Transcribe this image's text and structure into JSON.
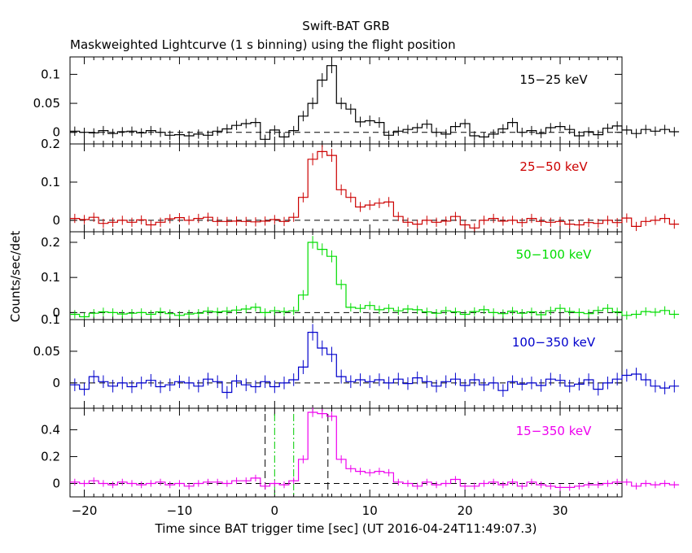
{
  "header": {
    "title": "Swift-BAT GRB",
    "subtitle": "Maskweighted Lightcurve (1 s binning) using the flight position"
  },
  "chart_data": {
    "type": "line",
    "xlabel": "Time since BAT trigger time [sec] (UT 2016-04-24T11:49:07.3)",
    "ylabel": "Counts/sec/det",
    "xlim": [
      -21.5,
      36.5
    ],
    "x_ticks": [
      -20,
      -10,
      0,
      10,
      20,
      30
    ],
    "x_tick_labels": [
      "−20",
      "−10",
      "0",
      "10",
      "20",
      "30"
    ],
    "bin_start": -21.5,
    "bin_width": 1,
    "panels": [
      {
        "band": "15−25 keV",
        "color": "#000000",
        "ylim": [
          -0.02,
          0.13
        ],
        "y_ticks": [
          0,
          0.05,
          0.1
        ],
        "y_tick_labels": [
          "0",
          "0.05",
          "0.1"
        ],
        "values": [
          0.002,
          0.0,
          -0.001,
          0.003,
          -0.002,
          0.001,
          0.002,
          -0.001,
          0.003,
          0.0,
          -0.005,
          -0.004,
          -0.006,
          -0.003,
          -0.005,
          0.002,
          0.006,
          0.012,
          0.015,
          0.017,
          -0.012,
          0.004,
          -0.008,
          0.003,
          0.028,
          0.05,
          0.09,
          0.115,
          0.05,
          0.04,
          0.018,
          0.02,
          0.017,
          -0.005,
          0.002,
          0.005,
          0.008,
          0.014,
          0.0,
          -0.003,
          0.01,
          0.015,
          -0.006,
          -0.008,
          -0.003,
          0.006,
          0.017,
          0.0,
          0.003,
          -0.002,
          0.008,
          0.01,
          0.005,
          -0.006,
          0.001,
          -0.004,
          0.007,
          0.011,
          0.004,
          -0.002,
          0.005,
          0.002,
          0.005,
          0.001
        ],
        "errors": [
          0.008,
          0.008,
          0.008,
          0.008,
          0.008,
          0.008,
          0.008,
          0.008,
          0.008,
          0.008,
          0.008,
          0.008,
          0.008,
          0.008,
          0.008,
          0.008,
          0.008,
          0.008,
          0.008,
          0.008,
          0.008,
          0.008,
          0.008,
          0.008,
          0.009,
          0.01,
          0.012,
          0.013,
          0.01,
          0.009,
          0.009,
          0.009,
          0.009,
          0.008,
          0.008,
          0.008,
          0.008,
          0.008,
          0.008,
          0.008,
          0.008,
          0.008,
          0.008,
          0.008,
          0.008,
          0.008,
          0.008,
          0.008,
          0.008,
          0.008,
          0.008,
          0.008,
          0.008,
          0.008,
          0.008,
          0.008,
          0.008,
          0.008,
          0.008,
          0.008,
          0.008,
          0.008,
          0.008,
          0.008
        ]
      },
      {
        "band": "25−50 keV",
        "color": "#cc0000",
        "ylim": [
          -0.03,
          0.2
        ],
        "y_ticks": [
          0,
          0.1,
          0.2
        ],
        "y_tick_labels": [
          "0",
          "0.1",
          "0.2"
        ],
        "values": [
          0.005,
          0.002,
          0.008,
          -0.008,
          -0.005,
          0.0,
          -0.005,
          0.001,
          -0.012,
          -0.005,
          0.004,
          0.007,
          0.0,
          0.005,
          0.008,
          -0.003,
          -0.003,
          -0.002,
          -0.003,
          -0.004,
          -0.002,
          0.002,
          -0.003,
          0.008,
          0.06,
          0.16,
          0.18,
          0.17,
          0.08,
          0.06,
          0.035,
          0.04,
          0.045,
          0.048,
          0.01,
          -0.005,
          -0.01,
          0.0,
          -0.005,
          -0.002,
          0.01,
          -0.012,
          -0.02,
          0.0,
          0.005,
          -0.002,
          0.0,
          -0.006,
          0.005,
          -0.003,
          -0.005,
          -0.003,
          -0.01,
          -0.012,
          -0.006,
          -0.008,
          0.0,
          -0.006,
          0.006,
          -0.016,
          -0.003,
          0.0,
          0.005,
          -0.01
        ],
        "errors": [
          0.012,
          0.012,
          0.012,
          0.012,
          0.012,
          0.012,
          0.012,
          0.012,
          0.012,
          0.012,
          0.012,
          0.012,
          0.012,
          0.012,
          0.012,
          0.012,
          0.012,
          0.012,
          0.012,
          0.012,
          0.012,
          0.012,
          0.012,
          0.012,
          0.013,
          0.016,
          0.017,
          0.017,
          0.014,
          0.013,
          0.013,
          0.013,
          0.013,
          0.013,
          0.012,
          0.012,
          0.012,
          0.012,
          0.012,
          0.012,
          0.012,
          0.012,
          0.012,
          0.012,
          0.012,
          0.012,
          0.012,
          0.012,
          0.012,
          0.012,
          0.012,
          0.012,
          0.012,
          0.012,
          0.012,
          0.012,
          0.012,
          0.012,
          0.012,
          0.012,
          0.012,
          0.012,
          0.012,
          0.012
        ]
      },
      {
        "band": "50−100 keV",
        "color": "#00dd00",
        "ylim": [
          -0.02,
          0.23
        ],
        "y_ticks": [
          0,
          0.1,
          0.2
        ],
        "y_tick_labels": [
          "0",
          "0.1",
          "0.2"
        ],
        "values": [
          -0.005,
          -0.012,
          -0.002,
          0.002,
          0.0,
          -0.004,
          -0.002,
          0.0,
          -0.005,
          0.002,
          -0.003,
          -0.008,
          -0.004,
          -0.002,
          0.004,
          0.002,
          0.004,
          0.007,
          0.01,
          0.015,
          0.0,
          0.005,
          0.003,
          0.005,
          0.05,
          0.2,
          0.18,
          0.16,
          0.08,
          0.015,
          0.012,
          0.02,
          0.008,
          0.012,
          0.005,
          0.01,
          0.008,
          0.002,
          -0.002,
          0.005,
          0.002,
          -0.005,
          0.003,
          0.008,
          0.0,
          -0.003,
          0.004,
          -0.002,
          0.002,
          -0.006,
          0.005,
          0.012,
          0.003,
          0.0,
          -0.003,
          0.006,
          0.012,
          0.002,
          -0.008,
          -0.005,
          0.003,
          0.001,
          0.006,
          -0.005
        ],
        "errors": [
          0.012,
          0.012,
          0.012,
          0.012,
          0.012,
          0.012,
          0.012,
          0.012,
          0.012,
          0.012,
          0.012,
          0.012,
          0.012,
          0.012,
          0.012,
          0.012,
          0.012,
          0.012,
          0.012,
          0.012,
          0.012,
          0.012,
          0.012,
          0.012,
          0.014,
          0.018,
          0.017,
          0.017,
          0.014,
          0.012,
          0.012,
          0.012,
          0.012,
          0.012,
          0.012,
          0.012,
          0.012,
          0.012,
          0.012,
          0.012,
          0.012,
          0.012,
          0.012,
          0.012,
          0.012,
          0.012,
          0.012,
          0.012,
          0.012,
          0.012,
          0.012,
          0.012,
          0.012,
          0.012,
          0.012,
          0.012,
          0.012,
          0.012,
          0.012,
          0.012,
          0.012,
          0.012,
          0.012,
          0.012
        ]
      },
      {
        "band": "100−350 keV",
        "color": "#0000cc",
        "ylim": [
          -0.04,
          0.1
        ],
        "y_ticks": [
          0,
          0.05,
          0.1
        ],
        "y_tick_labels": [
          "0",
          "0.05",
          "0.1"
        ],
        "values": [
          -0.003,
          -0.01,
          0.01,
          0.002,
          -0.005,
          0.0,
          -0.006,
          0.0,
          0.004,
          -0.006,
          -0.003,
          0.002,
          0.0,
          -0.005,
          0.006,
          0.002,
          -0.015,
          0.003,
          -0.003,
          -0.006,
          0.002,
          -0.006,
          0.0,
          0.005,
          0.025,
          0.08,
          0.055,
          0.045,
          0.01,
          0.002,
          0.005,
          0.002,
          0.005,
          0.0,
          0.006,
          -0.001,
          0.008,
          0.002,
          -0.005,
          0.002,
          0.006,
          -0.004,
          0.005,
          -0.003,
          0.0,
          -0.012,
          0.002,
          -0.002,
          0.0,
          -0.004,
          0.006,
          0.004,
          -0.005,
          -0.002,
          0.005,
          -0.01,
          0.0,
          0.006,
          0.012,
          0.014,
          0.005,
          -0.005,
          -0.008,
          -0.005
        ],
        "errors": [
          0.01,
          0.01,
          0.01,
          0.01,
          0.01,
          0.01,
          0.01,
          0.01,
          0.01,
          0.01,
          0.01,
          0.01,
          0.01,
          0.01,
          0.01,
          0.01,
          0.01,
          0.01,
          0.01,
          0.01,
          0.01,
          0.01,
          0.01,
          0.01,
          0.011,
          0.013,
          0.012,
          0.012,
          0.011,
          0.01,
          0.01,
          0.01,
          0.01,
          0.01,
          0.01,
          0.01,
          0.01,
          0.01,
          0.01,
          0.01,
          0.01,
          0.01,
          0.01,
          0.01,
          0.01,
          0.01,
          0.01,
          0.01,
          0.01,
          0.01,
          0.01,
          0.01,
          0.01,
          0.01,
          0.01,
          0.01,
          0.01,
          0.01,
          0.01,
          0.01,
          0.01,
          0.01,
          0.01,
          0.01
        ]
      },
      {
        "band": "15−350 keV",
        "color": "#ee00ee",
        "ylim": [
          -0.1,
          0.56
        ],
        "y_ticks": [
          0,
          0.2,
          0.4
        ],
        "y_tick_labels": [
          "0",
          "0.2",
          "0.4"
        ],
        "values": [
          0.01,
          0.0,
          0.02,
          0.0,
          -0.01,
          0.01,
          0.0,
          -0.01,
          0.0,
          0.01,
          -0.01,
          0.0,
          -0.02,
          0.0,
          0.01,
          0.01,
          0.0,
          0.02,
          0.02,
          0.04,
          -0.02,
          0.0,
          -0.01,
          0.02,
          0.18,
          0.53,
          0.52,
          0.5,
          0.18,
          0.11,
          0.09,
          0.08,
          0.09,
          0.08,
          0.01,
          0.0,
          -0.02,
          0.01,
          -0.01,
          0.0,
          0.03,
          -0.02,
          -0.02,
          0.0,
          0.01,
          -0.01,
          0.01,
          -0.02,
          0.01,
          -0.01,
          -0.02,
          -0.03,
          -0.03,
          -0.02,
          -0.01,
          -0.01,
          0.0,
          0.01,
          0.01,
          -0.02,
          0.0,
          -0.01,
          0.0,
          -0.01
        ],
        "errors": [
          0.025,
          0.025,
          0.025,
          0.025,
          0.025,
          0.025,
          0.025,
          0.025,
          0.025,
          0.025,
          0.025,
          0.025,
          0.025,
          0.025,
          0.025,
          0.025,
          0.025,
          0.025,
          0.025,
          0.025,
          0.025,
          0.025,
          0.025,
          0.025,
          0.03,
          0.035,
          0.035,
          0.035,
          0.03,
          0.027,
          0.027,
          0.027,
          0.027,
          0.027,
          0.025,
          0.025,
          0.025,
          0.025,
          0.025,
          0.025,
          0.025,
          0.025,
          0.025,
          0.025,
          0.025,
          0.025,
          0.025,
          0.025,
          0.025,
          0.025,
          0.025,
          0.025,
          0.025,
          0.025,
          0.025,
          0.025,
          0.025,
          0.025,
          0.025,
          0.025,
          0.025,
          0.025,
          0.025,
          0.025
        ],
        "markers": [
          {
            "x": -1.0,
            "color": "#000000",
            "dash": "dash"
          },
          {
            "x": 5.6,
            "color": "#000000",
            "dash": "dash"
          },
          {
            "x": 0.0,
            "color": "#00cc00",
            "dash": "dashdot"
          },
          {
            "x": 2.0,
            "color": "#00cc00",
            "dash": "dashdot"
          }
        ]
      }
    ]
  }
}
